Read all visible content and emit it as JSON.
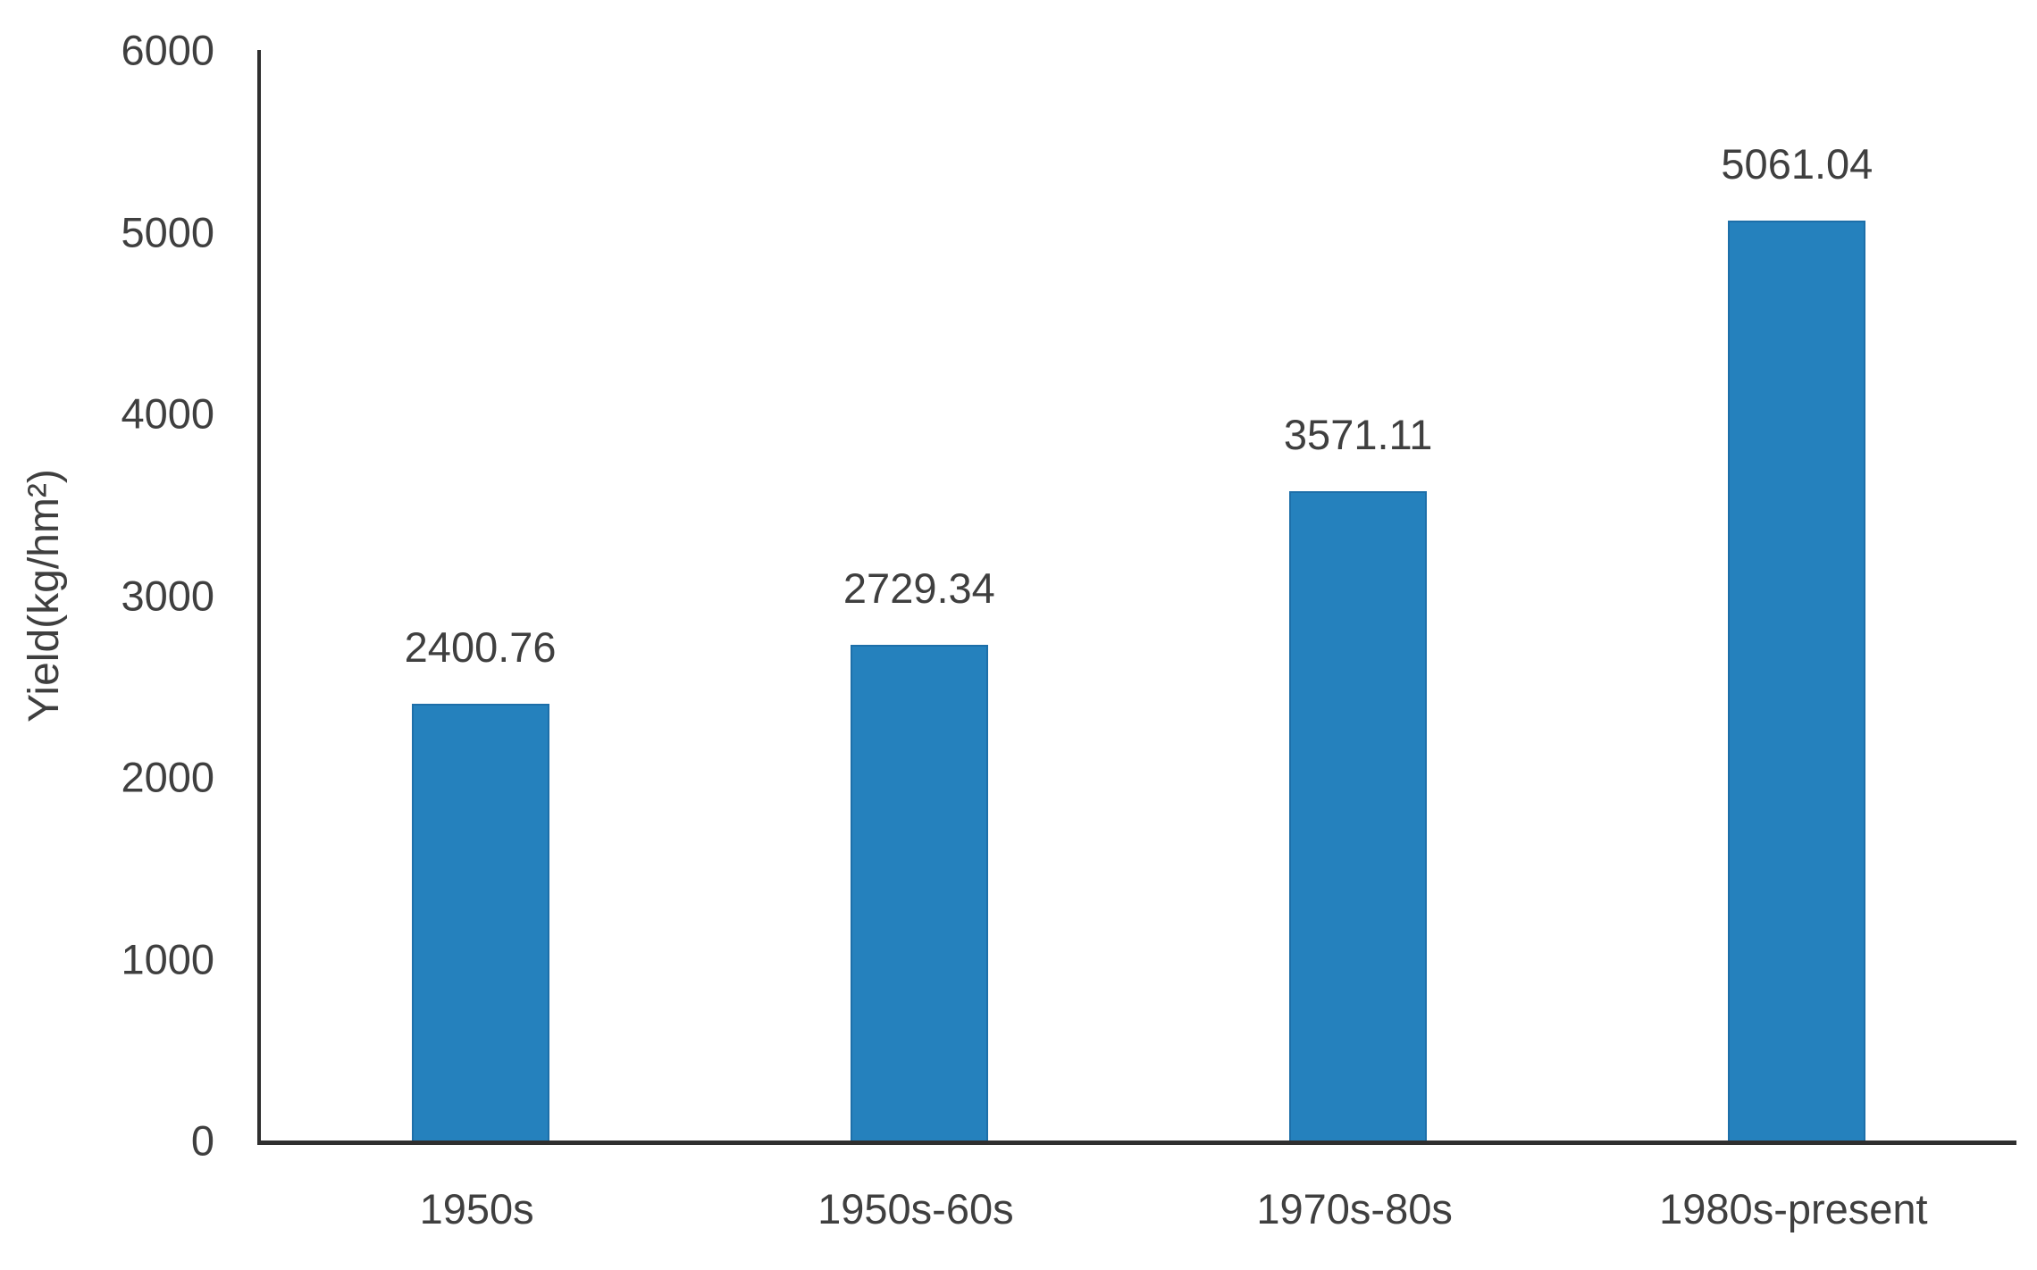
{
  "chart_data": {
    "type": "bar",
    "title": "",
    "xlabel": "",
    "ylabel": "Yield(kg/hm²)",
    "categories": [
      "1950s",
      "1950s-60s",
      "1970s-80s",
      "1980s-present"
    ],
    "values": [
      2400.76,
      2729.34,
      3571.11,
      5061.04
    ],
    "value_labels": [
      "2400.76",
      "2729.34",
      "3571.11",
      "5061.04"
    ],
    "ylim": [
      0,
      6000
    ],
    "yticks": [
      0,
      1000,
      2000,
      3000,
      4000,
      5000,
      6000
    ],
    "grid": "off",
    "legend": "none",
    "data_labels_position": "above-bars",
    "bar_color": "#2581BD",
    "bar_border_color": "#1D6FA9",
    "axis_color": "#2F2F2F",
    "text_color": "#3F3F3F",
    "background_color": "#FFFFFF"
  }
}
